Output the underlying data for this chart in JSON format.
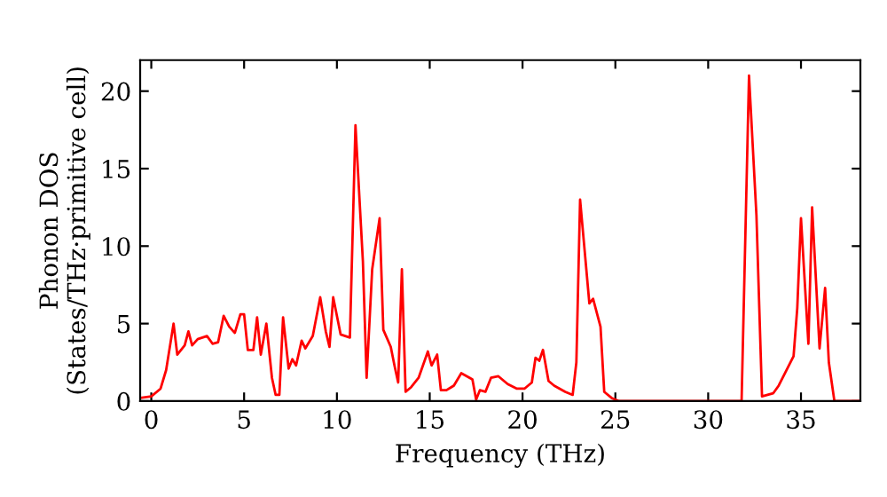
{
  "chart_data": {
    "type": "line",
    "xlabel": "Frequency (THz)",
    "ylabel": "Phonon DOS\n(States/THz·primitive cell)",
    "x": [
      -0.6,
      0,
      0.5,
      0.8,
      1.2,
      1.4,
      1.8,
      2.0,
      2.2,
      2.5,
      3.0,
      3.3,
      3.6,
      3.9,
      4.2,
      4.5,
      4.8,
      5.0,
      5.2,
      5.5,
      5.7,
      5.9,
      6.2,
      6.5,
      6.7,
      6.9,
      7.1,
      7.4,
      7.6,
      7.8,
      8.1,
      8.3,
      8.7,
      9.1,
      9.4,
      9.6,
      9.8,
      10.2,
      10.7,
      11.0,
      11.4,
      11.6,
      11.9,
      12.3,
      12.5,
      12.9,
      13.1,
      13.3,
      13.5,
      13.7,
      14.0,
      14.4,
      14.9,
      15.1,
      15.4,
      15.6,
      15.9,
      16.3,
      16.7,
      17.0,
      17.3,
      17.5,
      17.7,
      18.0,
      18.3,
      18.7,
      19.2,
      19.7,
      20.1,
      20.5,
      20.7,
      20.9,
      21.1,
      21.4,
      21.7,
      22.3,
      22.7,
      22.9,
      23.1,
      23.6,
      23.8,
      24.2,
      24.4,
      24.8,
      25.2,
      31.8,
      32.2,
      32.6,
      32.9,
      33.5,
      33.8,
      34.6,
      34.8,
      35.0,
      35.4,
      35.6,
      36.0,
      36.3,
      36.5,
      36.8,
      38.2
    ],
    "series": [
      {
        "color": "#ff0000",
        "values": [
          0.2,
          0.3,
          0.8,
          2,
          5.0,
          3.0,
          3.6,
          4.5,
          3.6,
          4.0,
          4.2,
          3.7,
          3.8,
          5.5,
          4.8,
          4.4,
          5.6,
          5.6,
          3.3,
          3.3,
          5.4,
          3.0,
          5.0,
          1.5,
          0.4,
          0.4,
          5.4,
          2.1,
          2.7,
          2.3,
          3.9,
          3.4,
          4.2,
          6.7,
          4.5,
          3.5,
          6.7,
          4.3,
          4.1,
          17.8,
          9,
          1.5,
          8.5,
          11.8,
          4.6,
          3.5,
          2.3,
          1.2,
          8.5,
          0.6,
          0.9,
          1.5,
          3.2,
          2.3,
          3.0,
          0.7,
          0.7,
          1.0,
          1.8,
          1.6,
          1.4,
          0.1,
          0.7,
          0.6,
          1.5,
          1.6,
          1.1,
          0.8,
          0.8,
          1.2,
          2.8,
          2.6,
          3.3,
          1.3,
          1.0,
          0.6,
          0.4,
          2.5,
          13.0,
          6.3,
          6.6,
          4.8,
          0.6,
          0.2,
          0,
          0,
          21.0,
          12,
          0.3,
          0.5,
          1.0,
          2.9,
          6,
          11.8,
          3.7,
          12.5,
          3.4,
          7.3,
          2.5,
          0,
          0
        ]
      }
    ],
    "xlim": [
      -0.6,
      38.2
    ],
    "ylim": [
      0,
      22
    ],
    "xticks": [
      0,
      5,
      10,
      15,
      20,
      25,
      30,
      35
    ],
    "yticks": [
      0,
      5,
      10,
      15,
      20
    ],
    "grid": false,
    "legend": false,
    "marker": "none",
    "line_style": "solid"
  }
}
